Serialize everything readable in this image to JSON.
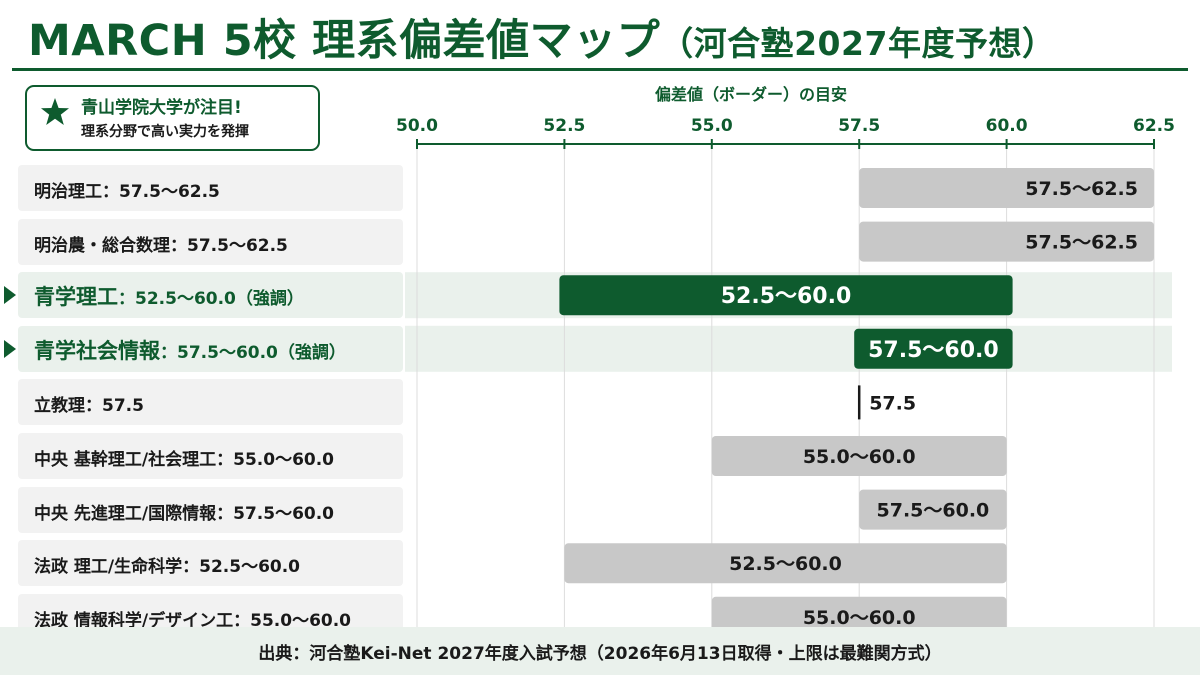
{
  "title": {
    "main": "MARCH 5校 理系偏差値マップ",
    "sub": "（河合塾2027年度予想）"
  },
  "callout": {
    "icon": "star-icon",
    "line1": "青山学院大学が注目!",
    "line2": "理系分野で高い実力を発揮"
  },
  "colors": {
    "accent": "#0e5b2e",
    "bar_gray": "#c8c8c8",
    "row_bg": "#f2f2f2",
    "row_bg_highlight": "#eaf1ec"
  },
  "rows": [
    {
      "label": "明治理工：57.5～62.5",
      "highlight": false
    },
    {
      "label": "明治農・総合数理：57.5～62.5",
      "highlight": false
    },
    {
      "label_name": "青学理工",
      "label_range": "：52.5～60.0（強調）",
      "highlight": true
    },
    {
      "label_name": "青学社会情報",
      "label_range": "：57.5～60.0（強調）",
      "highlight": true
    },
    {
      "label": "立教理：57.5",
      "highlight": false
    },
    {
      "label": "中央 基幹理工/社会理工：55.0～60.0",
      "highlight": false
    },
    {
      "label": "中央 先進理工/国際情報：57.5～60.0",
      "highlight": false
    },
    {
      "label": "法政 理工/生命科学：52.5～60.0",
      "highlight": false
    },
    {
      "label": "法政 情報科学/デザイン工：55.0～60.0",
      "highlight": false
    }
  ],
  "chart_data": {
    "type": "bar",
    "orientation": "horizontal-range",
    "xlabel": "偏差値（ボーダー）の目安",
    "xlim": [
      50.0,
      62.5
    ],
    "xticks": [
      "50.0",
      "52.5",
      "55.0",
      "57.5",
      "60.0",
      "62.5"
    ],
    "grid": true,
    "bars": [
      {
        "category": "明治理工",
        "low": 57.5,
        "high": 62.5,
        "label": "57.5～62.5",
        "highlight": false
      },
      {
        "category": "明治農・総合数理",
        "low": 57.5,
        "high": 62.5,
        "label": "57.5～62.5",
        "highlight": false
      },
      {
        "category": "青学理工",
        "low": 52.5,
        "high": 60.0,
        "label": "52.5～60.0",
        "highlight": true
      },
      {
        "category": "青学社会情報",
        "low": 57.5,
        "high": 60.0,
        "label": "57.5～60.0",
        "highlight": true
      },
      {
        "category": "立教理",
        "low": 57.5,
        "high": 57.5,
        "label": "57.5",
        "highlight": false
      },
      {
        "category": "中央 基幹理工/社会理工",
        "low": 55.0,
        "high": 60.0,
        "label": "55.0～60.0",
        "highlight": false
      },
      {
        "category": "中央 先進理工/国際情報",
        "low": 57.5,
        "high": 60.0,
        "label": "57.5～60.0",
        "highlight": false
      },
      {
        "category": "法政 理工/生命科学",
        "low": 52.5,
        "high": 60.0,
        "label": "52.5～60.0",
        "highlight": false
      },
      {
        "category": "法政 情報科学/デザイン工",
        "low": 55.0,
        "high": 60.0,
        "label": "55.0～60.0",
        "highlight": false
      }
    ]
  },
  "footer": {
    "text": "出典：河合塾Kei-Net  2027年度入試予想（2026年6月13日取得・上限は最難関方式）"
  }
}
